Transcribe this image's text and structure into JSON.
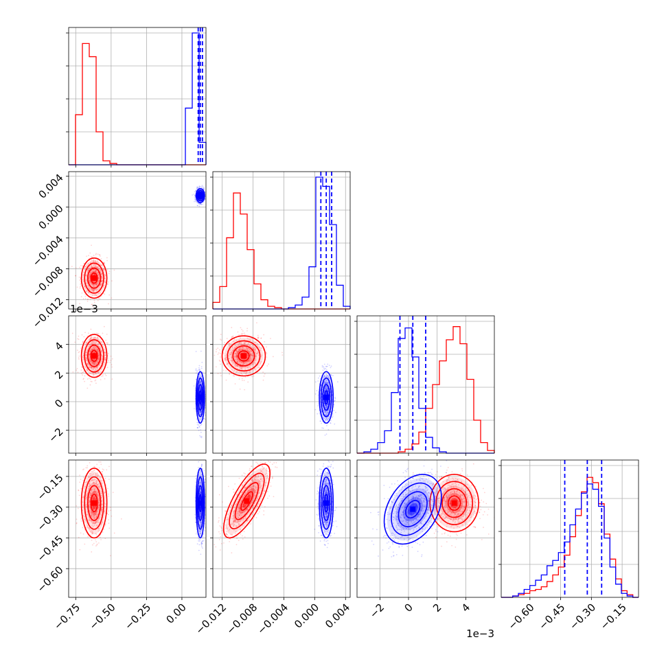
{
  "chart_data": {
    "type": "corner",
    "grid": true,
    "series": [
      {
        "name": "",
        "color": "#ff0000"
      },
      {
        "name": "",
        "color": "#0000ff"
      }
    ],
    "parameters": [
      {
        "range": [
          -0.8,
          0.17
        ],
        "ticks": [
          -0.75,
          -0.5,
          -0.25,
          0.0
        ],
        "tick_labels": [
          "−0.75",
          "−0.50",
          "−0.25",
          "0.00"
        ]
      },
      {
        "range": [
          -0.0132,
          0.0046
        ],
        "ticks": [
          -0.012,
          -0.008,
          -0.004,
          0.0,
          0.004
        ],
        "tick_labels": [
          "−0.012",
          "−0.008",
          "−0.004",
          "0.000",
          "0.004"
        ]
      },
      {
        "range": [
          -3.6,
          6.0
        ],
        "ticks": [
          -2,
          0,
          2,
          4
        ],
        "tick_labels": [
          "−2",
          "0",
          "2",
          "4"
        ],
        "offset_label": "1e−3"
      },
      {
        "range": [
          -0.74,
          -0.07
        ],
        "ticks": [
          -0.6,
          -0.45,
          -0.3,
          -0.15
        ],
        "tick_labels": [
          "−0.60",
          "−0.45",
          "−0.30",
          "−0.15"
        ]
      }
    ],
    "histograms": [
      {
        "param": 0,
        "edges": [
          -0.8,
          0.17
        ],
        "bins": 20,
        "series": [
          {
            "color": "#ff0000",
            "values": [
              0,
              0.38,
              0.92,
              0.82,
              0.25,
              0.03,
              0.01,
              0,
              0,
              0,
              0,
              0,
              0,
              0,
              0,
              0,
              0,
              0,
              0,
              0
            ]
          },
          {
            "color": "#0000ff",
            "values": [
              0,
              0,
              0,
              0,
              0,
              0,
              0,
              0,
              0,
              0,
              0,
              0,
              0,
              0,
              0,
              0,
              0,
              0.43,
              1.0,
              0.17
            ]
          }
        ],
        "quantiles": [
          0.115,
          0.13,
          0.145
        ],
        "quantile_color": "#0000ff"
      },
      {
        "param": 1,
        "edges": [
          -0.0132,
          0.0046
        ],
        "bins": 20,
        "series": [
          {
            "color": "#ff0000",
            "values": [
              0.05,
              0.17,
              0.54,
              0.88,
              0.72,
              0.45,
              0.19,
              0.07,
              0.02,
              0.01,
              0,
              0,
              0,
              0,
              0,
              0,
              0,
              0,
              0,
              0
            ]
          },
          {
            "color": "#0000ff",
            "values": [
              0,
              0,
              0,
              0,
              0,
              0,
              0,
              0,
              0,
              0,
              0,
              0.01,
              0.03,
              0.09,
              0.32,
              1.0,
              0.93,
              0.64,
              0.18,
              0.02
            ]
          }
        ],
        "quantiles": [
          0.0008,
          0.0015,
          0.0022
        ],
        "quantile_color": "#0000ff"
      },
      {
        "param": 2,
        "edges": [
          -3.6,
          6.0
        ],
        "bins": 20,
        "series": [
          {
            "color": "#0000ff",
            "values": [
              0,
              0.01,
              0.03,
              0.08,
              0.17,
              0.46,
              0.87,
              0.95,
              0.73,
              0.34,
              0.12,
              0.04,
              0.01,
              0,
              0,
              0,
              0,
              0,
              0,
              0
            ]
          },
          {
            "color": "#ff0000",
            "values": [
              0,
              0,
              0,
              0,
              0,
              0,
              0.01,
              0.03,
              0.07,
              0.16,
              0.34,
              0.52,
              0.7,
              0.86,
              0.96,
              0.83,
              0.56,
              0.25,
              0.08,
              0.02
            ]
          }
        ],
        "quantiles": [
          -0.6,
          0.3,
          1.2
        ],
        "quantile_color": "#0000ff"
      },
      {
        "param": 3,
        "edges": [
          -0.74,
          -0.07
        ],
        "bins": 24,
        "series": [
          {
            "color": "#ff0000",
            "values": [
              0,
              0,
              0.01,
              0.02,
              0.03,
              0.05,
              0.06,
              0.08,
              0.12,
              0.17,
              0.23,
              0.32,
              0.46,
              0.62,
              0.8,
              0.91,
              0.87,
              0.71,
              0.48,
              0.29,
              0.14,
              0.05,
              0.02,
              0
            ]
          },
          {
            "color": "#0000ff",
            "values": [
              0,
              0,
              0.01,
              0.03,
              0.06,
              0.09,
              0.13,
              0.17,
              0.24,
              0.28,
              0.34,
              0.42,
              0.55,
              0.67,
              0.79,
              0.86,
              0.82,
              0.69,
              0.45,
              0.23,
              0.1,
              0.03,
              0.01,
              0
            ]
          }
        ],
        "quantiles": [
          -0.43,
          -0.32,
          -0.25
        ],
        "quantile_color": "#0000ff"
      }
    ],
    "scatter_2d": [
      {
        "x_param": 0,
        "y_param": 1,
        "clusters": [
          {
            "color": "#ff0000",
            "mean": [
              -0.62,
              -0.0092
            ],
            "sd": [
              0.045,
              0.0013
            ],
            "corr": 0
          },
          {
            "color": "#0000ff",
            "mean": [
              0.13,
              0.0015
            ],
            "sd": [
              0.015,
              0.00045
            ],
            "corr": 0
          }
        ]
      },
      {
        "x_param": 0,
        "y_param": 2,
        "clusters": [
          {
            "color": "#ff0000",
            "mean": [
              -0.62,
              3.2
            ],
            "sd": [
              0.045,
              0.75
            ],
            "corr": 0
          },
          {
            "color": "#0000ff",
            "mean": [
              0.13,
              0.3
            ],
            "sd": [
              0.015,
              0.9
            ],
            "corr": 0
          }
        ]
      },
      {
        "x_param": 0,
        "y_param": 3,
        "clusters": [
          {
            "color": "#ff0000",
            "mean": [
              -0.62,
              -0.28
            ],
            "sd": [
              0.045,
              0.085
            ],
            "corr": 0
          },
          {
            "color": "#0000ff",
            "mean": [
              0.13,
              -0.28
            ],
            "sd": [
              0.015,
              0.085
            ],
            "corr": 0
          }
        ]
      },
      {
        "x_param": 1,
        "y_param": 2,
        "clusters": [
          {
            "color": "#ff0000",
            "mean": [
              -0.0092,
              3.2
            ],
            "sd": [
              0.0014,
              0.7
            ],
            "corr": 0
          },
          {
            "color": "#0000ff",
            "mean": [
              0.0015,
              0.3
            ],
            "sd": [
              0.00045,
              0.9
            ],
            "corr": 0
          }
        ]
      },
      {
        "x_param": 1,
        "y_param": 3,
        "clusters": [
          {
            "color": "#ff0000",
            "mean": [
              -0.0088,
              -0.27
            ],
            "sd": [
              0.0015,
              0.09
            ],
            "corr": 0.75
          },
          {
            "color": "#0000ff",
            "mean": [
              0.0015,
              -0.28
            ],
            "sd": [
              0.00045,
              0.085
            ],
            "corr": 0
          }
        ]
      },
      {
        "x_param": 2,
        "y_param": 3,
        "clusters": [
          {
            "color": "#ff0000",
            "mean": [
              3.2,
              -0.28
            ],
            "sd": [
              0.85,
              0.07
            ],
            "corr": 0
          },
          {
            "color": "#0000ff",
            "mean": [
              0.3,
              -0.31
            ],
            "sd": [
              1.0,
              0.085
            ],
            "corr": 0.35
          }
        ]
      }
    ]
  }
}
